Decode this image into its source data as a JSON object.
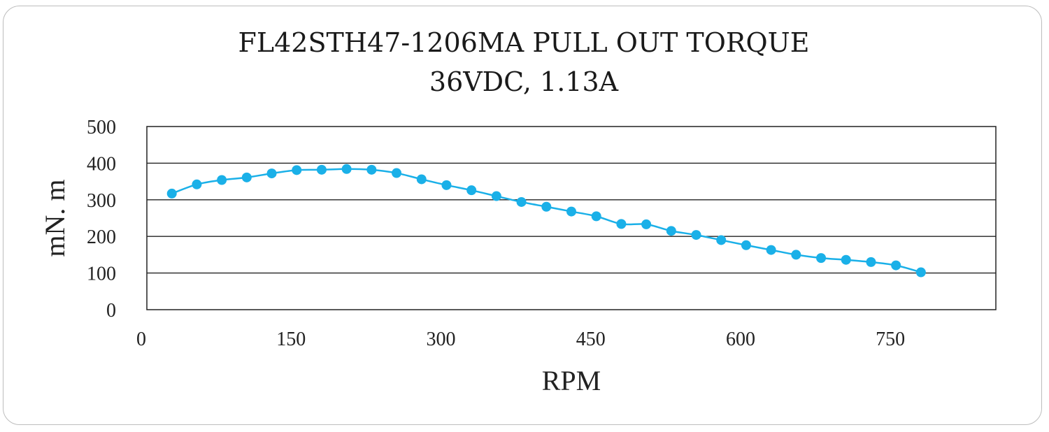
{
  "chart_data": {
    "type": "line",
    "title": "FL42STH47-1206MA PULL OUT TORQUE",
    "subtitle": "36VDC, 1.13A",
    "xlabel": "RPM",
    "ylabel": "mN. m",
    "xlim": [
      0,
      850
    ],
    "ylim": [
      0,
      500
    ],
    "x_ticks": [
      0,
      150,
      300,
      450,
      600,
      750
    ],
    "y_ticks": [
      0,
      100,
      200,
      300,
      400,
      500
    ],
    "grid": "horizontal",
    "legend": "none",
    "series": [
      {
        "color": "#1ab0e8",
        "x": [
          25,
          50,
          75,
          100,
          125,
          150,
          175,
          200,
          225,
          250,
          275,
          300,
          325,
          350,
          375,
          400,
          425,
          450,
          475,
          500,
          525,
          550,
          575,
          600,
          625,
          650,
          675,
          700,
          725,
          750,
          775
        ],
        "y": [
          317,
          342,
          354,
          361,
          372,
          381,
          382,
          384,
          382,
          373,
          356,
          340,
          326,
          310,
          294,
          281,
          268,
          255,
          234,
          233,
          215,
          204,
          190,
          176,
          163,
          150,
          141,
          136,
          130,
          121,
          102
        ]
      }
    ]
  }
}
